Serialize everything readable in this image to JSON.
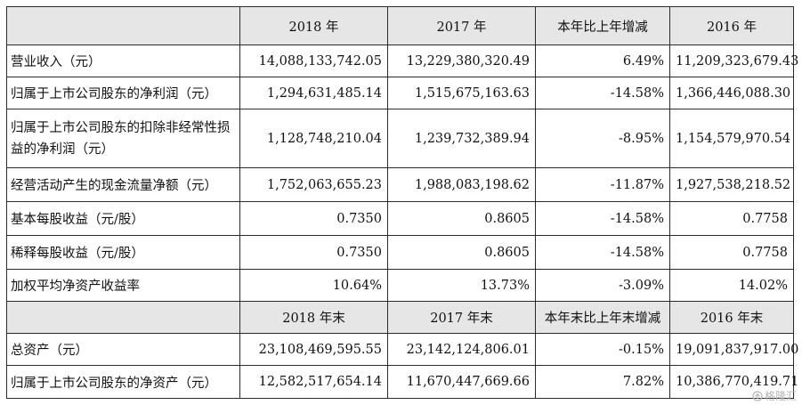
{
  "table": {
    "header1": [
      "",
      "2018 年",
      "2017 年",
      "本年比上年增减",
      "2016 年"
    ],
    "rows1": [
      {
        "label": "营业收入（元）",
        "values": [
          "14,088,133,742.05",
          "13,229,380,320.49",
          "6.49%",
          "11,209,323,679.43"
        ]
      },
      {
        "label": "归属于上市公司股东的净利润（元）",
        "values": [
          "1,294,631,485.14",
          "1,515,675,163.63",
          "-14.58%",
          "1,366,446,088.30"
        ]
      },
      {
        "label": "归属于上市公司股东的扣除非经常性损益的净利润（元）",
        "values": [
          "1,128,748,210.04",
          "1,239,732,389.94",
          "-8.95%",
          "1,154,579,970.54"
        ]
      },
      {
        "label": "经营活动产生的现金流量净额（元）",
        "values": [
          "1,752,063,655.23",
          "1,988,083,198.62",
          "-11.87%",
          "1,927,538,218.52"
        ]
      },
      {
        "label": "基本每股收益（元/股）",
        "values": [
          "0.7350",
          "0.8605",
          "-14.58%",
          "0.7758"
        ]
      },
      {
        "label": "稀释每股收益（元/股）",
        "values": [
          "0.7350",
          "0.8605",
          "-14.58%",
          "0.7758"
        ]
      },
      {
        "label": "加权平均净资产收益率",
        "values": [
          "10.64%",
          "13.73%",
          "-3.09%",
          "14.02%"
        ]
      }
    ],
    "header2": [
      "",
      "2018 年末",
      "2017 年末",
      "本年末比上年末增减",
      "2016 年末"
    ],
    "rows2": [
      {
        "label": "总资产（元）",
        "values": [
          "23,108,469,595.55",
          "23,142,124,806.01",
          "-0.15%",
          "19,091,837,917.00"
        ]
      },
      {
        "label": "归属于上市公司股东的净资产（元）",
        "values": [
          "12,582,517,654.14",
          "11,670,447,669.66",
          "7.82%",
          "10,386,770,419.71"
        ]
      }
    ]
  },
  "watermark": {
    "icon": "gelonghui-logo-icon",
    "text": "格隆汇"
  }
}
